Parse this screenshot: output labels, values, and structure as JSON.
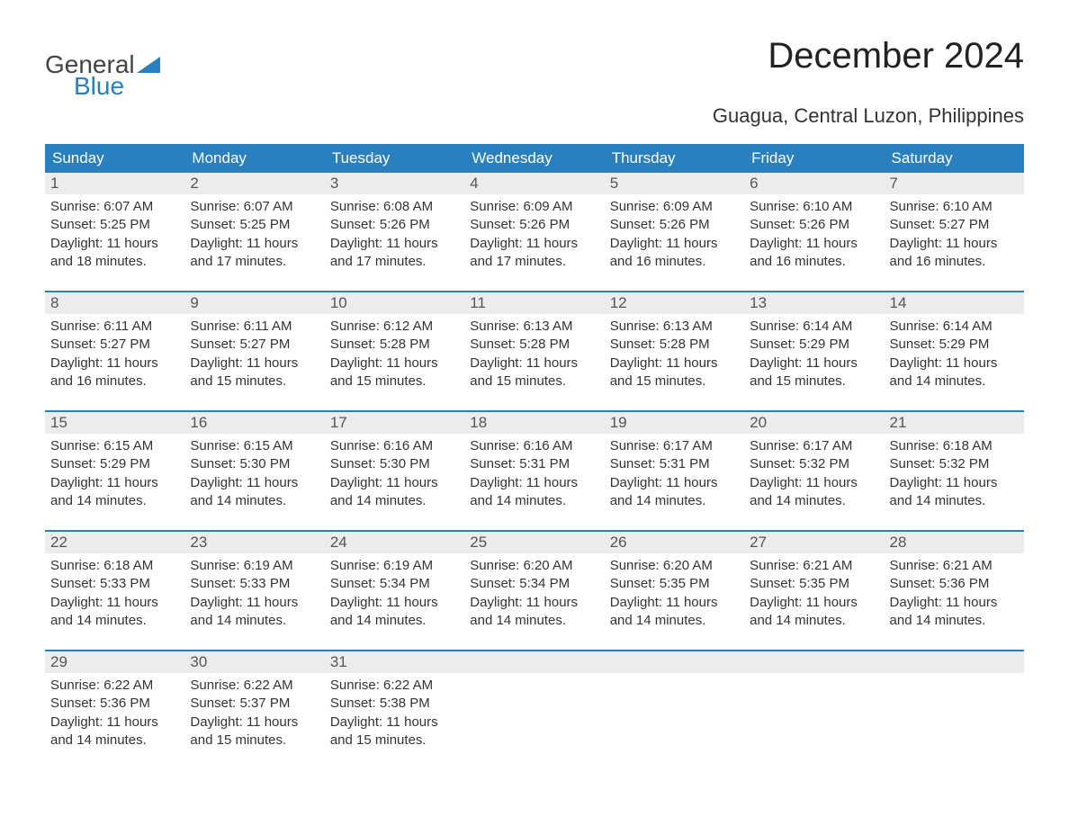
{
  "logo": {
    "part1": "General",
    "part2": "Blue"
  },
  "title": "December 2024",
  "subtitle": "Guagua, Central Luzon, Philippines",
  "colors": {
    "header_bg": "#2a7fbf",
    "header_text": "#ffffff",
    "daynum_bg": "#ececec",
    "daynum_text": "#555555",
    "body_text": "#333333",
    "row_divider": "#2a7fbf",
    "page_bg": "#ffffff",
    "logo_gray": "#444444",
    "logo_blue": "#2a7fbf"
  },
  "weekdays": [
    "Sunday",
    "Monday",
    "Tuesday",
    "Wednesday",
    "Thursday",
    "Friday",
    "Saturday"
  ],
  "layout": {
    "columns": 7,
    "rows": 5
  },
  "days": [
    {
      "n": "1",
      "sunrise": "Sunrise: 6:07 AM",
      "sunset": "Sunset: 5:25 PM",
      "daylight1": "Daylight: 11 hours",
      "daylight2": "and 18 minutes."
    },
    {
      "n": "2",
      "sunrise": "Sunrise: 6:07 AM",
      "sunset": "Sunset: 5:25 PM",
      "daylight1": "Daylight: 11 hours",
      "daylight2": "and 17 minutes."
    },
    {
      "n": "3",
      "sunrise": "Sunrise: 6:08 AM",
      "sunset": "Sunset: 5:26 PM",
      "daylight1": "Daylight: 11 hours",
      "daylight2": "and 17 minutes."
    },
    {
      "n": "4",
      "sunrise": "Sunrise: 6:09 AM",
      "sunset": "Sunset: 5:26 PM",
      "daylight1": "Daylight: 11 hours",
      "daylight2": "and 17 minutes."
    },
    {
      "n": "5",
      "sunrise": "Sunrise: 6:09 AM",
      "sunset": "Sunset: 5:26 PM",
      "daylight1": "Daylight: 11 hours",
      "daylight2": "and 16 minutes."
    },
    {
      "n": "6",
      "sunrise": "Sunrise: 6:10 AM",
      "sunset": "Sunset: 5:26 PM",
      "daylight1": "Daylight: 11 hours",
      "daylight2": "and 16 minutes."
    },
    {
      "n": "7",
      "sunrise": "Sunrise: 6:10 AM",
      "sunset": "Sunset: 5:27 PM",
      "daylight1": "Daylight: 11 hours",
      "daylight2": "and 16 minutes."
    },
    {
      "n": "8",
      "sunrise": "Sunrise: 6:11 AM",
      "sunset": "Sunset: 5:27 PM",
      "daylight1": "Daylight: 11 hours",
      "daylight2": "and 16 minutes."
    },
    {
      "n": "9",
      "sunrise": "Sunrise: 6:11 AM",
      "sunset": "Sunset: 5:27 PM",
      "daylight1": "Daylight: 11 hours",
      "daylight2": "and 15 minutes."
    },
    {
      "n": "10",
      "sunrise": "Sunrise: 6:12 AM",
      "sunset": "Sunset: 5:28 PM",
      "daylight1": "Daylight: 11 hours",
      "daylight2": "and 15 minutes."
    },
    {
      "n": "11",
      "sunrise": "Sunrise: 6:13 AM",
      "sunset": "Sunset: 5:28 PM",
      "daylight1": "Daylight: 11 hours",
      "daylight2": "and 15 minutes."
    },
    {
      "n": "12",
      "sunrise": "Sunrise: 6:13 AM",
      "sunset": "Sunset: 5:28 PM",
      "daylight1": "Daylight: 11 hours",
      "daylight2": "and 15 minutes."
    },
    {
      "n": "13",
      "sunrise": "Sunrise: 6:14 AM",
      "sunset": "Sunset: 5:29 PM",
      "daylight1": "Daylight: 11 hours",
      "daylight2": "and 15 minutes."
    },
    {
      "n": "14",
      "sunrise": "Sunrise: 6:14 AM",
      "sunset": "Sunset: 5:29 PM",
      "daylight1": "Daylight: 11 hours",
      "daylight2": "and 14 minutes."
    },
    {
      "n": "15",
      "sunrise": "Sunrise: 6:15 AM",
      "sunset": "Sunset: 5:29 PM",
      "daylight1": "Daylight: 11 hours",
      "daylight2": "and 14 minutes."
    },
    {
      "n": "16",
      "sunrise": "Sunrise: 6:15 AM",
      "sunset": "Sunset: 5:30 PM",
      "daylight1": "Daylight: 11 hours",
      "daylight2": "and 14 minutes."
    },
    {
      "n": "17",
      "sunrise": "Sunrise: 6:16 AM",
      "sunset": "Sunset: 5:30 PM",
      "daylight1": "Daylight: 11 hours",
      "daylight2": "and 14 minutes."
    },
    {
      "n": "18",
      "sunrise": "Sunrise: 6:16 AM",
      "sunset": "Sunset: 5:31 PM",
      "daylight1": "Daylight: 11 hours",
      "daylight2": "and 14 minutes."
    },
    {
      "n": "19",
      "sunrise": "Sunrise: 6:17 AM",
      "sunset": "Sunset: 5:31 PM",
      "daylight1": "Daylight: 11 hours",
      "daylight2": "and 14 minutes."
    },
    {
      "n": "20",
      "sunrise": "Sunrise: 6:17 AM",
      "sunset": "Sunset: 5:32 PM",
      "daylight1": "Daylight: 11 hours",
      "daylight2": "and 14 minutes."
    },
    {
      "n": "21",
      "sunrise": "Sunrise: 6:18 AM",
      "sunset": "Sunset: 5:32 PM",
      "daylight1": "Daylight: 11 hours",
      "daylight2": "and 14 minutes."
    },
    {
      "n": "22",
      "sunrise": "Sunrise: 6:18 AM",
      "sunset": "Sunset: 5:33 PM",
      "daylight1": "Daylight: 11 hours",
      "daylight2": "and 14 minutes."
    },
    {
      "n": "23",
      "sunrise": "Sunrise: 6:19 AM",
      "sunset": "Sunset: 5:33 PM",
      "daylight1": "Daylight: 11 hours",
      "daylight2": "and 14 minutes."
    },
    {
      "n": "24",
      "sunrise": "Sunrise: 6:19 AM",
      "sunset": "Sunset: 5:34 PM",
      "daylight1": "Daylight: 11 hours",
      "daylight2": "and 14 minutes."
    },
    {
      "n": "25",
      "sunrise": "Sunrise: 6:20 AM",
      "sunset": "Sunset: 5:34 PM",
      "daylight1": "Daylight: 11 hours",
      "daylight2": "and 14 minutes."
    },
    {
      "n": "26",
      "sunrise": "Sunrise: 6:20 AM",
      "sunset": "Sunset: 5:35 PM",
      "daylight1": "Daylight: 11 hours",
      "daylight2": "and 14 minutes."
    },
    {
      "n": "27",
      "sunrise": "Sunrise: 6:21 AM",
      "sunset": "Sunset: 5:35 PM",
      "daylight1": "Daylight: 11 hours",
      "daylight2": "and 14 minutes."
    },
    {
      "n": "28",
      "sunrise": "Sunrise: 6:21 AM",
      "sunset": "Sunset: 5:36 PM",
      "daylight1": "Daylight: 11 hours",
      "daylight2": "and 14 minutes."
    },
    {
      "n": "29",
      "sunrise": "Sunrise: 6:22 AM",
      "sunset": "Sunset: 5:36 PM",
      "daylight1": "Daylight: 11 hours",
      "daylight2": "and 14 minutes."
    },
    {
      "n": "30",
      "sunrise": "Sunrise: 6:22 AM",
      "sunset": "Sunset: 5:37 PM",
      "daylight1": "Daylight: 11 hours",
      "daylight2": "and 15 minutes."
    },
    {
      "n": "31",
      "sunrise": "Sunrise: 6:22 AM",
      "sunset": "Sunset: 5:38 PM",
      "daylight1": "Daylight: 11 hours",
      "daylight2": "and 15 minutes."
    }
  ]
}
